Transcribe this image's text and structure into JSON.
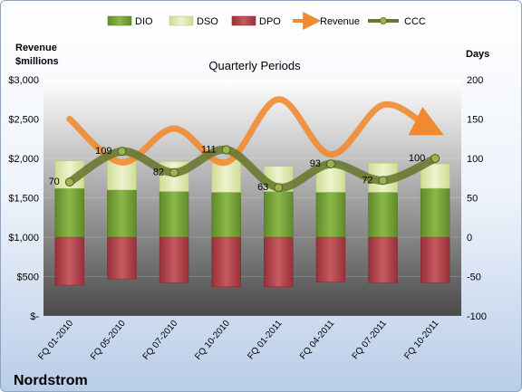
{
  "company": "Nordstrom",
  "chart_data": {
    "type": "bar",
    "title": "Quarterly Periods",
    "left_axis_label": [
      "Revenue",
      "$millions"
    ],
    "right_axis_label": "Days",
    "left_ticks": [
      "$-",
      "$500",
      "$1,000",
      "$1,500",
      "$2,000",
      "$2,500",
      "$3,000"
    ],
    "right_ticks": [
      "-100",
      "-50",
      "0",
      "50",
      "100",
      "150",
      "200"
    ],
    "ylim_left": [
      0,
      3000
    ],
    "ylim_right": [
      -100,
      200
    ],
    "legend_position": "top",
    "categories": [
      "FQ 01-2010",
      "FQ 05-2010",
      "FQ 07-2010",
      "FQ 10-2010",
      "FQ 01-2011",
      "FQ 04-2011",
      "FQ 07-2011",
      "FQ 10-2011"
    ],
    "series": [
      {
        "name": "DIO",
        "kind": "stacked-bar",
        "axis": "right",
        "color": "#7aa23a",
        "values": [
          62,
          60,
          58,
          57,
          58,
          57,
          57,
          62
        ]
      },
      {
        "name": "DSO",
        "kind": "stacked-bar",
        "axis": "right",
        "color": "#dfe9b0",
        "values": [
          35,
          39,
          38,
          41,
          32,
          34,
          37,
          31
        ]
      },
      {
        "name": "DPO",
        "kind": "stacked-bar",
        "axis": "right",
        "color": "#b9464a",
        "values": [
          -61,
          -53,
          -58,
          -63,
          -63,
          -57,
          -58,
          -58
        ]
      },
      {
        "name": "Revenue",
        "kind": "line",
        "axis": "left",
        "color": "#f0892f",
        "values": [
          2500,
          1950,
          2380,
          1950,
          2750,
          2050,
          2680,
          2350
        ]
      },
      {
        "name": "CCC",
        "kind": "line",
        "axis": "right",
        "color": "#66782e",
        "values": [
          70,
          109,
          82,
          111,
          63,
          93,
          72,
          100
        ]
      }
    ],
    "data_labels": [
      "70",
      "109",
      "82",
      "111",
      "63",
      "93",
      "72",
      "100"
    ],
    "colors": {
      "dio": "#7aa23a",
      "dso": "#dfe9b0",
      "dpo": "#b9464a",
      "revenue": "#f0892f",
      "ccc": "#66782e",
      "ccc_marker": "#9bb450"
    }
  }
}
